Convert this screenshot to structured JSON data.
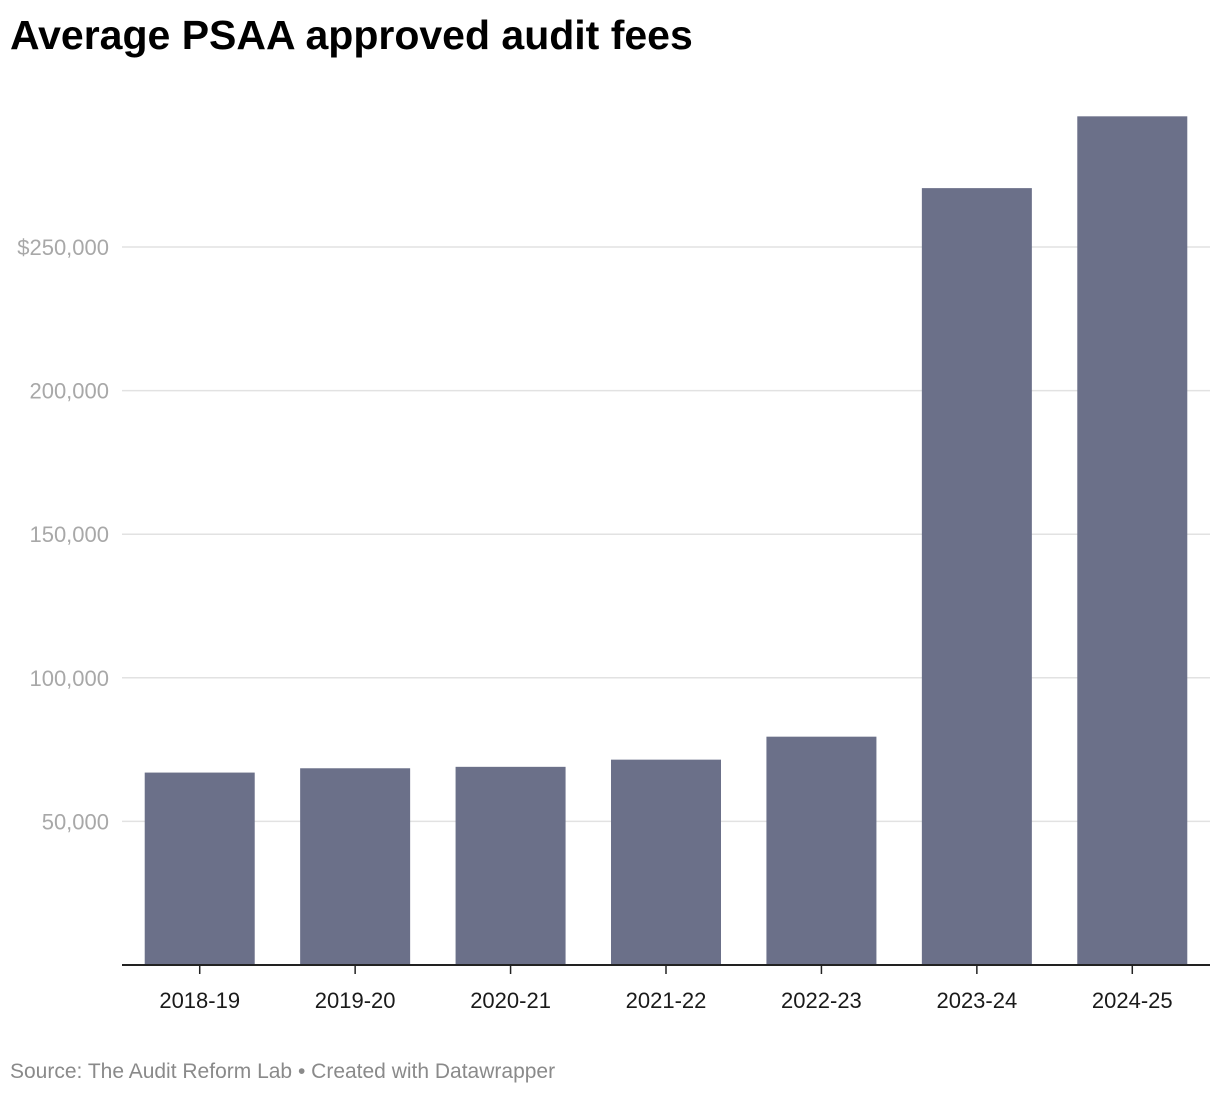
{
  "chart_data": {
    "type": "bar",
    "title": "Average PSAA approved audit fees",
    "xlabel": "",
    "ylabel": "",
    "categories": [
      "2018-19",
      "2019-20",
      "2020-21",
      "2021-22",
      "2022-23",
      "2023-24",
      "2024-25"
    ],
    "values": [
      67000,
      68500,
      69000,
      71500,
      79500,
      270500,
      295500
    ],
    "ylim": [
      0,
      300000
    ],
    "y_ticks": [
      {
        "value": 50000,
        "label": "50,000"
      },
      {
        "value": 100000,
        "label": "100,000"
      },
      {
        "value": 150000,
        "label": "150,000"
      },
      {
        "value": 200000,
        "label": "200,000"
      },
      {
        "value": 250000,
        "label": "$250,000"
      }
    ],
    "grid": true,
    "legend": "none",
    "bar_color": "#6b7089"
  },
  "footer": {
    "source": "Source: The Audit Reform Lab",
    "separator": "•",
    "credit": "Created with Datawrapper"
  }
}
